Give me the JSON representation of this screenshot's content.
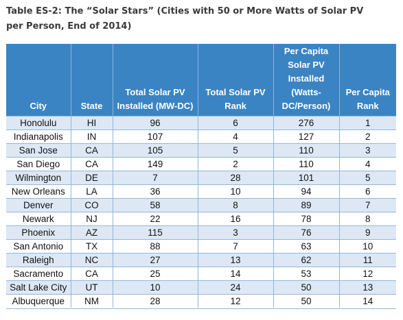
{
  "caption": {
    "line1": "Table ES-2: The “Solar Stars” (Cities with 50 or More Watts of Solar PV",
    "line2": "per Person, End of 2014)"
  },
  "headers": {
    "city": "City",
    "state": "State",
    "total_pv": "Total Solar PV Installed (MW-DC)",
    "total_rank": "Total Solar PV Rank",
    "per_capita": "Per Capita Solar PV Installed (Watts-DC/Person)",
    "per_capita_rank": "Per Capita Rank"
  },
  "rows": [
    {
      "city": "Honolulu",
      "state": "HI",
      "total_pv": "96",
      "total_rank": "6",
      "per_capita": "276",
      "per_capita_rank": "1"
    },
    {
      "city": "Indianapolis",
      "state": "IN",
      "total_pv": "107",
      "total_rank": "4",
      "per_capita": "127",
      "per_capita_rank": "2"
    },
    {
      "city": "San Jose",
      "state": "CA",
      "total_pv": "105",
      "total_rank": "5",
      "per_capita": "110",
      "per_capita_rank": "3"
    },
    {
      "city": "San Diego",
      "state": "CA",
      "total_pv": "149",
      "total_rank": "2",
      "per_capita": "110",
      "per_capita_rank": "4"
    },
    {
      "city": "Wilmington",
      "state": "DE",
      "total_pv": "7",
      "total_rank": "28",
      "per_capita": "101",
      "per_capita_rank": "5"
    },
    {
      "city": "New Orleans",
      "state": "LA",
      "total_pv": "36",
      "total_rank": "10",
      "per_capita": "94",
      "per_capita_rank": "6"
    },
    {
      "city": "Denver",
      "state": "CO",
      "total_pv": "58",
      "total_rank": "8",
      "per_capita": "89",
      "per_capita_rank": "7"
    },
    {
      "city": "Newark",
      "state": "NJ",
      "total_pv": "22",
      "total_rank": "16",
      "per_capita": "78",
      "per_capita_rank": "8"
    },
    {
      "city": "Phoenix",
      "state": "AZ",
      "total_pv": "115",
      "total_rank": "3",
      "per_capita": "76",
      "per_capita_rank": "9"
    },
    {
      "city": "San Antonio",
      "state": "TX",
      "total_pv": "88",
      "total_rank": "7",
      "per_capita": "63",
      "per_capita_rank": "10"
    },
    {
      "city": "Raleigh",
      "state": "NC",
      "total_pv": "27",
      "total_rank": "13",
      "per_capita": "62",
      "per_capita_rank": "11"
    },
    {
      "city": "Sacramento",
      "state": "CA",
      "total_pv": "25",
      "total_rank": "14",
      "per_capita": "53",
      "per_capita_rank": "12"
    },
    {
      "city": "Salt Lake City",
      "state": "UT",
      "total_pv": "10",
      "total_rank": "24",
      "per_capita": "50",
      "per_capita_rank": "13"
    },
    {
      "city": "Albuquerque",
      "state": "NM",
      "total_pv": "28",
      "total_rank": "12",
      "per_capita": "50",
      "per_capita_rank": "14"
    }
  ],
  "colors": {
    "header_bg": "#3a84c4",
    "stripe_bg": "#dde8f4",
    "grid_line": "#8fb6dc"
  }
}
